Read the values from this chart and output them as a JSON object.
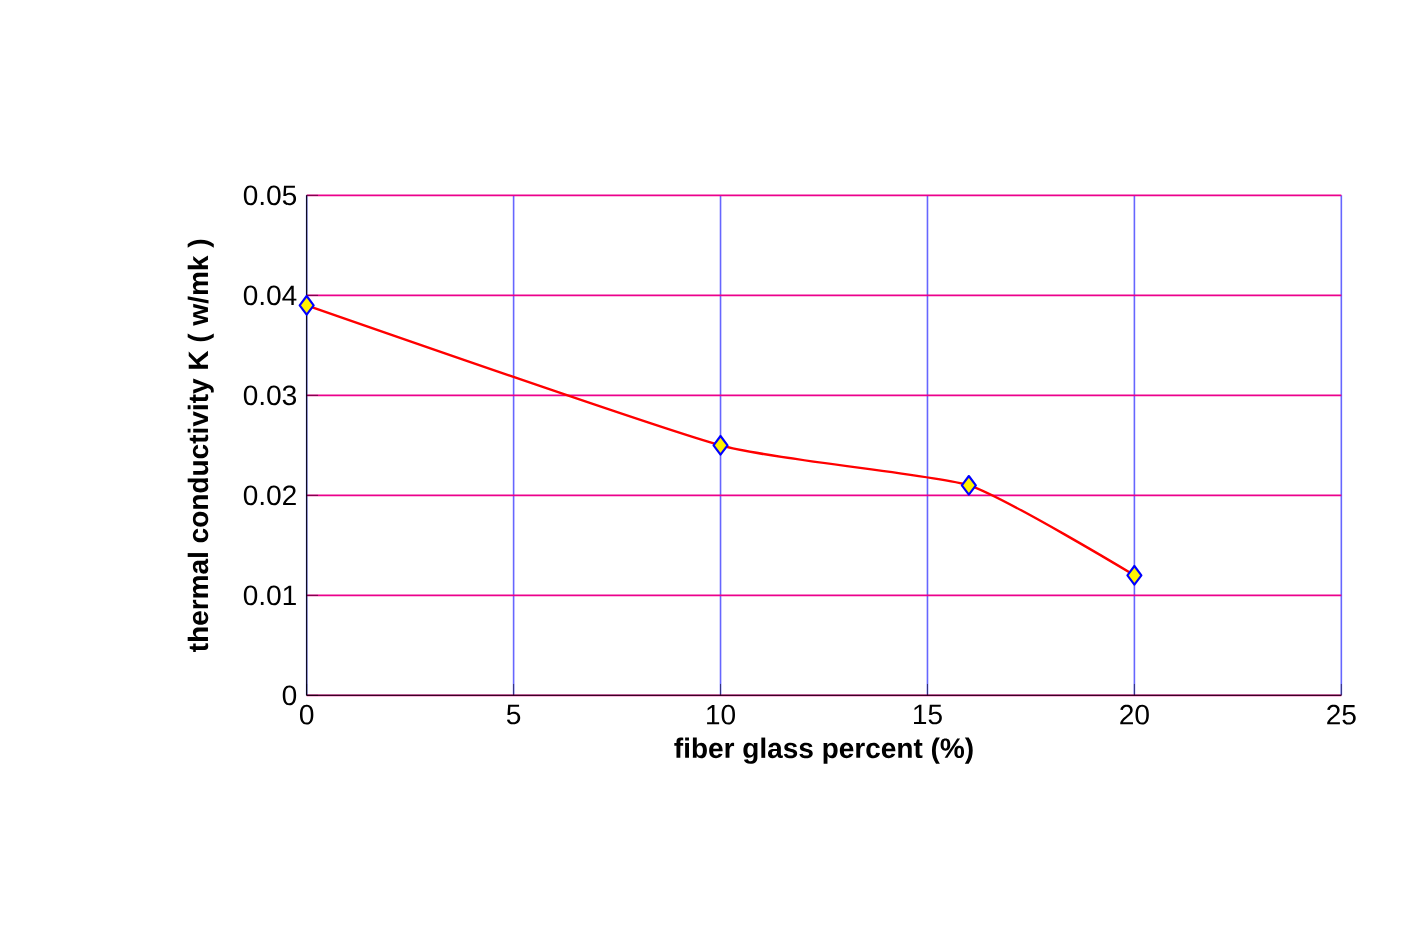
{
  "chart_data": {
    "type": "line",
    "xlabel": "fiber glass percent (%)",
    "ylabel": "thermal conductivity K  ( w/mk )",
    "x": [
      0,
      10,
      16,
      20
    ],
    "series": [
      {
        "color": "#ff0000",
        "values": [
          0.039,
          0.025,
          0.021,
          0.012
        ]
      }
    ],
    "xlim": [
      0,
      25
    ],
    "xticks": [
      0,
      5,
      10,
      15,
      20,
      25
    ],
    "ylim": [
      0,
      0.05
    ],
    "yticks": [
      0,
      0.01,
      0.02,
      0.03,
      0.04,
      0.05
    ],
    "grid": true,
    "marker": "diamond",
    "line_style": "solid"
  }
}
